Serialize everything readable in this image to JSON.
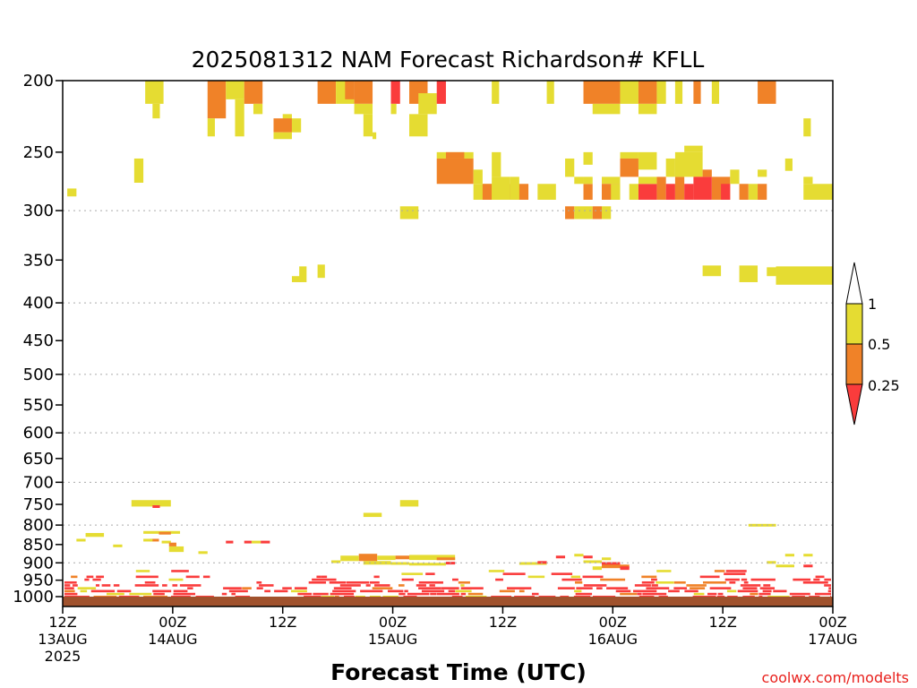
{
  "chart_data": {
    "type": "heatmap",
    "title": "2025081312 NAM Forecast Richardson# KFLL",
    "xlabel": "Forecast Time (UTC)",
    "ylabel": "",
    "y_axis": {
      "scale": "log",
      "reversed": true,
      "range": [
        200,
        1000
      ],
      "ticks": [
        200,
        250,
        300,
        350,
        400,
        450,
        500,
        550,
        600,
        650,
        700,
        750,
        800,
        850,
        900,
        950,
        1000
      ],
      "tick_labels": [
        "200",
        "250",
        "300",
        "350",
        "400",
        "450",
        "500",
        "550",
        "600",
        "650",
        "700",
        "750",
        "800",
        "850",
        "900",
        "950",
        "1000"
      ],
      "gridlines": [
        300,
        400,
        500,
        600,
        700,
        800,
        900
      ]
    },
    "x_axis": {
      "range": [
        0,
        84
      ],
      "units": "forecast hours from 2025-08-13 12Z",
      "ticks": [
        {
          "hour": 0,
          "label": "12Z",
          "date": "13AUG",
          "year": "2025"
        },
        {
          "hour": 12,
          "label": "00Z",
          "date": "14AUG",
          "year": ""
        },
        {
          "hour": 24,
          "label": "12Z",
          "date": "",
          "year": ""
        },
        {
          "hour": 36,
          "label": "00Z",
          "date": "15AUG",
          "year": ""
        },
        {
          "hour": 48,
          "label": "12Z",
          "date": "",
          "year": ""
        },
        {
          "hour": 60,
          "label": "00Z",
          "date": "16AUG",
          "year": ""
        },
        {
          "hour": 72,
          "label": "12Z",
          "date": "",
          "year": ""
        },
        {
          "hour": 84,
          "label": "00Z",
          "date": "17AUG",
          "year": ""
        }
      ]
    },
    "legend": {
      "placement": "right",
      "labels": [
        "1",
        "0.5",
        "0.25"
      ],
      "bins": [
        {
          "range": "0.5-1",
          "color": "#e5dc32"
        },
        {
          "range": "0.25-0.5",
          "color": "#f08228"
        },
        {
          "range": "<0.25",
          "color": "#fa3c3c"
        }
      ]
    },
    "colors": {
      "yellow": "#e5dc32",
      "orange": "#f08228",
      "red": "#fa3c3c",
      "ground": "#a0522d",
      "grid": "#aaaaaa"
    },
    "cells": [
      [
        "y",
        9.0,
        11.0,
        200,
        215
      ],
      [
        "y",
        9.8,
        10.6,
        215,
        225
      ],
      [
        "o",
        15.8,
        17.8,
        200,
        225
      ],
      [
        "y",
        15.8,
        16.6,
        225,
        238
      ],
      [
        "y",
        17.8,
        19.8,
        200,
        212
      ],
      [
        "y",
        18.8,
        19.8,
        212,
        238
      ],
      [
        "o",
        19.8,
        21.8,
        200,
        215
      ],
      [
        "y",
        20.8,
        21.8,
        215,
        222
      ],
      [
        "y",
        24.0,
        25.0,
        222,
        235
      ],
      [
        "o",
        23.0,
        25.0,
        225,
        235
      ],
      [
        "y",
        23.0,
        25.0,
        235,
        240
      ],
      [
        "y",
        25.0,
        26.0,
        225,
        235
      ],
      [
        "o",
        27.8,
        29.8,
        200,
        215
      ],
      [
        "y",
        29.8,
        31.8,
        200,
        215
      ],
      [
        "o",
        30.8,
        31.8,
        200,
        212
      ],
      [
        "o",
        31.8,
        33.8,
        200,
        215
      ],
      [
        "y",
        31.8,
        33.8,
        215,
        222
      ],
      [
        "y",
        32.8,
        33.8,
        222,
        238
      ],
      [
        "y",
        33.8,
        34.2,
        235,
        240
      ],
      [
        "r",
        35.8,
        36.8,
        200,
        215
      ],
      [
        "y",
        35.8,
        36.4,
        215,
        222
      ],
      [
        "o",
        37.8,
        39.8,
        200,
        215
      ],
      [
        "y",
        38.8,
        40.8,
        208,
        222
      ],
      [
        "y",
        37.8,
        39.8,
        222,
        238
      ],
      [
        "r",
        40.8,
        41.8,
        200,
        215
      ],
      [
        "y",
        46.8,
        47.6,
        200,
        215
      ],
      [
        "y",
        52.8,
        53.6,
        200,
        215
      ],
      [
        "o",
        56.8,
        60.8,
        200,
        215
      ],
      [
        "y",
        57.8,
        60.8,
        215,
        222
      ],
      [
        "y",
        60.8,
        62.8,
        200,
        215
      ],
      [
        "o",
        62.8,
        64.8,
        200,
        215
      ],
      [
        "y",
        64.8,
        65.8,
        200,
        215
      ],
      [
        "y",
        62.8,
        64.8,
        215,
        222
      ],
      [
        "y",
        66.8,
        67.6,
        200,
        215
      ],
      [
        "o",
        68.8,
        69.6,
        200,
        215
      ],
      [
        "y",
        70.8,
        71.6,
        200,
        215
      ],
      [
        "o",
        75.8,
        77.8,
        200,
        215
      ],
      [
        "y",
        80.8,
        81.6,
        225,
        238
      ],
      [
        "y",
        78.8,
        79.6,
        255,
        265
      ],
      [
        "y",
        7.8,
        8.8,
        255,
        275
      ],
      [
        "y",
        0.5,
        1.5,
        280,
        287
      ],
      [
        "o",
        40.8,
        44.8,
        255,
        276
      ],
      [
        "y",
        40.8,
        44.8,
        250,
        255
      ],
      [
        "o",
        41.8,
        43.8,
        250,
        255
      ],
      [
        "y",
        44.8,
        45.8,
        264,
        276
      ],
      [
        "y",
        44.8,
        47.8,
        276,
        290
      ],
      [
        "o",
        45.8,
        46.8,
        276,
        290
      ],
      [
        "y",
        46.8,
        48.8,
        270,
        290
      ],
      [
        "y",
        46.8,
        47.8,
        250,
        270
      ],
      [
        "o",
        48.8,
        50.8,
        276,
        290
      ],
      [
        "y",
        48.8,
        49.8,
        270,
        290
      ],
      [
        "y",
        51.8,
        53.8,
        276,
        290
      ],
      [
        "y",
        54.8,
        55.8,
        255,
        270
      ],
      [
        "y",
        55.8,
        56.8,
        270,
        276
      ],
      [
        "y",
        56.8,
        57.8,
        250,
        260
      ],
      [
        "o",
        56.8,
        57.8,
        276,
        290
      ],
      [
        "y",
        56.8,
        57.8,
        270,
        276
      ],
      [
        "y",
        58.8,
        60.8,
        270,
        276
      ],
      [
        "o",
        58.8,
        60.8,
        276,
        290
      ],
      [
        "y",
        59.8,
        60.8,
        276,
        290
      ],
      [
        "y",
        60.8,
        62.8,
        250,
        255
      ],
      [
        "o",
        60.8,
        62.8,
        255,
        270
      ],
      [
        "y",
        61.8,
        62.8,
        276,
        290
      ],
      [
        "y",
        62.8,
        64.8,
        250,
        264
      ],
      [
        "r",
        62.8,
        64.8,
        276,
        290
      ],
      [
        "y",
        62.8,
        64.8,
        270,
        276
      ],
      [
        "o",
        64.8,
        65.8,
        270,
        290
      ],
      [
        "y",
        65.8,
        66.8,
        255,
        270
      ],
      [
        "r",
        65.8,
        66.8,
        276,
        290
      ],
      [
        "o",
        66.8,
        67.8,
        270,
        290
      ],
      [
        "y",
        66.8,
        69.8,
        250,
        270
      ],
      [
        "r",
        67.8,
        68.8,
        276,
        290
      ],
      [
        "y",
        67.8,
        69.8,
        245,
        250
      ],
      [
        "r",
        68.8,
        70.8,
        270,
        290
      ],
      [
        "o",
        69.8,
        70.8,
        264,
        270
      ],
      [
        "o",
        70.8,
        72.8,
        270,
        290
      ],
      [
        "r",
        71.8,
        72.8,
        276,
        290
      ],
      [
        "y",
        72.8,
        73.8,
        264,
        276
      ],
      [
        "o",
        73.8,
        74.8,
        276,
        290
      ],
      [
        "y",
        74.8,
        75.8,
        276,
        290
      ],
      [
        "o",
        75.8,
        76.8,
        276,
        290
      ],
      [
        "y",
        75.8,
        76.8,
        264,
        270
      ],
      [
        "y",
        80.8,
        84.0,
        276,
        290
      ],
      [
        "y",
        80.8,
        81.8,
        270,
        276
      ],
      [
        "y",
        36.8,
        38.8,
        296,
        308
      ],
      [
        "o",
        54.8,
        55.8,
        296,
        308
      ],
      [
        "y",
        55.8,
        57.8,
        296,
        308
      ],
      [
        "o",
        57.8,
        58.8,
        296,
        308
      ],
      [
        "y",
        58.8,
        59.8,
        296,
        308
      ],
      [
        "y",
        25.0,
        26.0,
        368,
        375
      ],
      [
        "y",
        25.8,
        26.6,
        357,
        375
      ],
      [
        "y",
        27.8,
        28.6,
        355,
        370
      ],
      [
        "y",
        69.8,
        71.8,
        356,
        368
      ],
      [
        "y",
        73.8,
        75.8,
        356,
        375
      ],
      [
        "y",
        76.8,
        77.8,
        358,
        368
      ],
      [
        "y",
        77.8,
        84.0,
        357,
        378
      ],
      [
        "y",
        7.5,
        11.8,
        740,
        755
      ],
      [
        "r",
        9.8,
        10.6,
        752,
        758
      ],
      [
        "y",
        32.8,
        34.8,
        770,
        780
      ],
      [
        "y",
        36.8,
        38.8,
        740,
        755
      ],
      [
        "y",
        74.8,
        77.8,
        797,
        803
      ],
      [
        "y",
        2.5,
        4.5,
        820,
        830
      ],
      [
        "y",
        1.5,
        2.5,
        835,
        842
      ],
      [
        "y",
        5.5,
        6.5,
        850,
        855
      ],
      [
        "y",
        8.8,
        12.8,
        815,
        822
      ],
      [
        "o",
        10.5,
        11.8,
        817,
        824
      ],
      [
        "o",
        9.5,
        10.5,
        835,
        842
      ],
      [
        "y",
        8.8,
        9.8,
        835,
        842
      ],
      [
        "y",
        10.8,
        11.8,
        840,
        845
      ],
      [
        "o",
        11.6,
        12.4,
        845,
        855
      ],
      [
        "y",
        11.6,
        13.2,
        855,
        870
      ],
      [
        "y",
        14.8,
        15.8,
        868,
        875
      ],
      [
        "r",
        17.8,
        18.6,
        840,
        845
      ],
      [
        "r",
        19.8,
        20.6,
        840,
        845
      ],
      [
        "y",
        20.6,
        21.6,
        840,
        845
      ],
      [
        "r",
        21.6,
        22.6,
        840,
        845
      ],
      [
        "o",
        32.3,
        34.3,
        875,
        895
      ],
      [
        "y",
        30.3,
        32.3,
        880,
        895
      ],
      [
        "y",
        34.3,
        36.3,
        880,
        892
      ],
      [
        "o",
        36.3,
        37.8,
        880,
        890
      ],
      [
        "y",
        37.8,
        42.8,
        878,
        892
      ],
      [
        "o",
        40.8,
        42.8,
        885,
        892
      ],
      [
        "y",
        29.3,
        30.3,
        893,
        898
      ],
      [
        "y",
        32.8,
        35.8,
        895,
        905
      ],
      [
        "y",
        35.8,
        37.8,
        898,
        905
      ],
      [
        "y",
        37.8,
        41.8,
        900,
        905
      ],
      [
        "r",
        41.8,
        42.8,
        897,
        902
      ],
      [
        "y",
        49.8,
        52.8,
        898,
        905
      ],
      [
        "r",
        51.8,
        52.8,
        895,
        902
      ],
      [
        "r",
        53.8,
        54.8,
        880,
        885
      ],
      [
        "y",
        55.8,
        56.8,
        875,
        880
      ],
      [
        "y",
        58.8,
        59.8,
        885,
        890
      ],
      [
        "r",
        56.8,
        57.8,
        880,
        885
      ],
      [
        "y",
        56.8,
        58.8,
        893,
        898
      ],
      [
        "r",
        58.8,
        60.8,
        898,
        905
      ],
      [
        "o",
        58.8,
        61.8,
        905,
        915
      ],
      [
        "y",
        57.8,
        58.8,
        910,
        920
      ],
      [
        "r",
        60.8,
        61.8,
        910,
        920
      ],
      [
        "y",
        78.8,
        79.8,
        875,
        880
      ],
      [
        "y",
        80.8,
        81.8,
        875,
        880
      ],
      [
        "y",
        76.8,
        77.8,
        895,
        902
      ],
      [
        "y",
        77.8,
        79.8,
        905,
        912
      ],
      [
        "r",
        80.8,
        81.8,
        905,
        912
      ]
    ],
    "noise_band": [
      920,
      1000
    ]
  },
  "credit": "coolwx.com/modelts"
}
